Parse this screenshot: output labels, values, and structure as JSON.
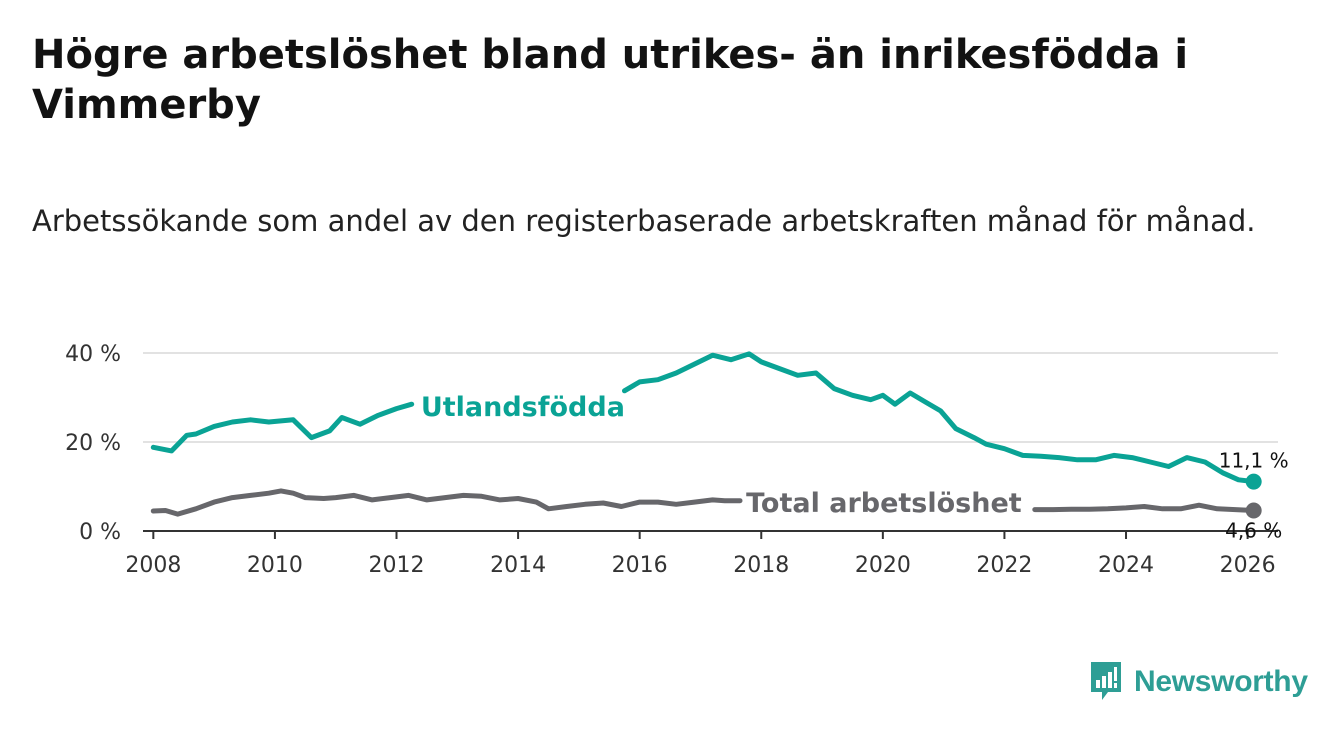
{
  "title": "Högre arbetslöshet bland utrikes- än inrikesfödda i Vimmerby",
  "subtitle": "Arbetssökande som andel av den registerbaserade arbetskraften månad för månad.",
  "brand": {
    "name": "Newsworthy",
    "icon": "bar-chart-logo-icon"
  },
  "colors": {
    "utlandsfodda": "#0aa395",
    "total": "#67676b",
    "grid": "#d9d9d9",
    "axis": "#333333",
    "text": "#333333"
  },
  "chart_data": {
    "type": "line",
    "xlim": [
      2007.83,
      2026.5
    ],
    "ylim": [
      0,
      40
    ],
    "x_ticks": [
      2008,
      2010,
      2012,
      2014,
      2016,
      2018,
      2020,
      2022,
      2024,
      2026
    ],
    "x_tick_labels": [
      "2008",
      "2010",
      "2012",
      "2014",
      "2016",
      "2018",
      "2020",
      "2022",
      "2024",
      "2026"
    ],
    "y_ticks": [
      0,
      20,
      40
    ],
    "y_tick_labels": [
      "0 %",
      "20 %",
      "40 %"
    ],
    "grid": true,
    "series": [
      {
        "name": "Utlandsfödda",
        "label": "Utlandsfödda",
        "end_label": "11,1 %",
        "x": [
          2008.0,
          2008.3,
          2008.55,
          2008.7,
          2009.0,
          2009.3,
          2009.6,
          2009.9,
          2010.3,
          2010.6,
          2010.9,
          2011.1,
          2011.4,
          2011.7,
          2012.0,
          2012.25,
          2015.75,
          2016.0,
          2016.3,
          2016.6,
          2016.9,
          2017.2,
          2017.5,
          2017.8,
          2018.0,
          2018.3,
          2018.6,
          2018.9,
          2019.2,
          2019.5,
          2019.8,
          2020.0,
          2020.2,
          2020.45,
          2020.7,
          2020.95,
          2021.2,
          2021.5,
          2021.7,
          2022.0,
          2022.3,
          2022.6,
          2022.9,
          2023.2,
          2023.5,
          2023.8,
          2024.1,
          2024.4,
          2024.7,
          2025.0,
          2025.3,
          2025.6,
          2025.85,
          2026.1
        ],
        "values": [
          18.8,
          18.0,
          21.5,
          21.8,
          23.5,
          24.5,
          25.0,
          24.5,
          25.0,
          21.0,
          22.5,
          25.5,
          24.0,
          26.0,
          27.5,
          28.5,
          31.5,
          33.5,
          34.0,
          35.5,
          37.5,
          39.5,
          38.5,
          39.8,
          38.0,
          36.5,
          35.0,
          35.5,
          32.0,
          30.5,
          29.5,
          30.5,
          28.5,
          31.0,
          29.0,
          27.0,
          23.0,
          21.0,
          19.5,
          18.5,
          17.0,
          16.8,
          16.5,
          16.0,
          16.0,
          17.0,
          16.5,
          15.5,
          14.5,
          16.5,
          15.5,
          13.0,
          11.5,
          11.1
        ]
      },
      {
        "name": "Total arbetslöshet",
        "label": "Total arbetslöshet",
        "end_label": "4,6 %",
        "x": [
          2008.0,
          2008.2,
          2008.4,
          2008.7,
          2009.0,
          2009.3,
          2009.6,
          2009.9,
          2010.1,
          2010.3,
          2010.5,
          2010.8,
          2011.0,
          2011.3,
          2011.6,
          2011.9,
          2012.2,
          2012.5,
          2012.8,
          2013.1,
          2013.4,
          2013.7,
          2014.0,
          2014.3,
          2014.5,
          2014.8,
          2015.1,
          2015.4,
          2015.7,
          2016.0,
          2016.3,
          2016.6,
          2016.9,
          2017.2,
          2017.4,
          2017.65,
          2022.5,
          2022.8,
          2023.1,
          2023.4,
          2023.7,
          2024.0,
          2024.3,
          2024.6,
          2024.9,
          2025.2,
          2025.5,
          2025.8,
          2026.1
        ],
        "values": [
          4.5,
          4.6,
          3.8,
          5.0,
          6.5,
          7.5,
          8.0,
          8.5,
          9.0,
          8.5,
          7.5,
          7.3,
          7.5,
          8.0,
          7.0,
          7.5,
          8.0,
          7.0,
          7.5,
          8.0,
          7.8,
          7.0,
          7.3,
          6.5,
          5.0,
          5.5,
          6.0,
          6.3,
          5.5,
          6.5,
          6.5,
          6.0,
          6.5,
          7.0,
          6.8,
          6.8,
          4.8,
          4.8,
          4.9,
          4.9,
          5.0,
          5.2,
          5.5,
          5.0,
          5.0,
          5.8,
          5.0,
          4.8,
          4.6
        ]
      }
    ]
  }
}
